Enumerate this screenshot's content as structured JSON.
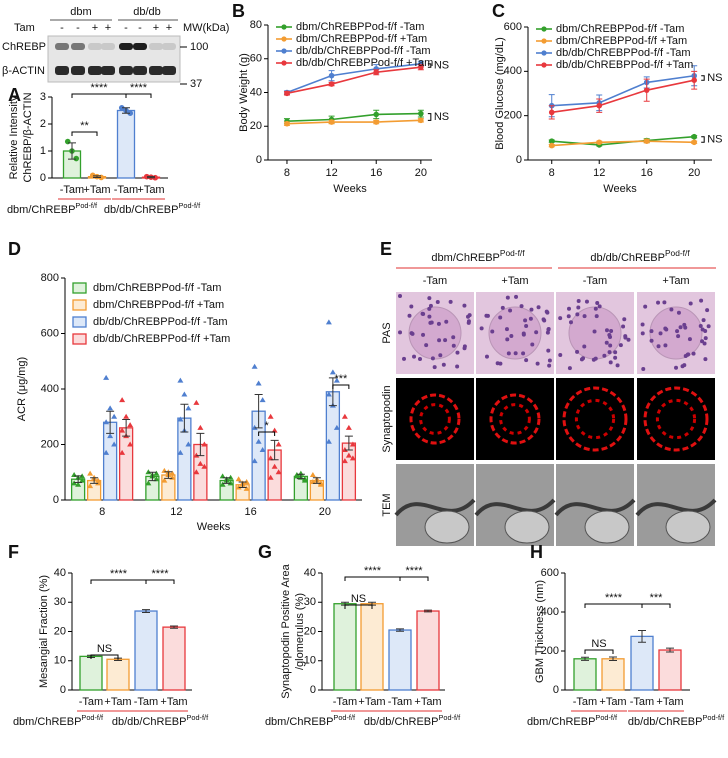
{
  "blot": {
    "groups": [
      "dbm",
      "db/db"
    ],
    "row_label": "Tam",
    "lanes": [
      "-",
      "-",
      "+",
      "+",
      "-",
      "-",
      "+",
      "+"
    ],
    "mw_label": "MW(kDa)",
    "bands": [
      "ChREBP",
      "β-ACTIN"
    ],
    "mw": [
      100,
      37
    ]
  },
  "micrographs": {
    "panel": "E",
    "groups": [
      {
        "text": "dbm/ChREBP",
        "sup": "Pod-f/f"
      },
      {
        "text": "db/db/ChREBP",
        "sup": "Pod-f/f"
      }
    ],
    "columns": [
      "-Tam",
      "+Tam",
      "-Tam",
      "+Tam"
    ],
    "rows": [
      "PAS",
      "Synaptopodin",
      "TEM"
    ]
  },
  "chart_data": [
    {
      "type": "bar",
      "panel": "A",
      "ylabel": [
        "Relative Intensity",
        "ChREBP/β-ACTIN"
      ],
      "categories": [
        "-Tam",
        "+Tam",
        "-Tam",
        "+Tam"
      ],
      "groups": [
        {
          "text": "dbm/ChREBP",
          "sup": "Pod-f/f"
        },
        {
          "text": "db/db/ChREBP",
          "sup": "Pod-f/f"
        }
      ],
      "values": [
        1.0,
        0.05,
        2.5,
        0.03
      ],
      "errors": [
        0.3,
        0.03,
        0.1,
        0.02
      ],
      "points": [
        [
          1.35,
          1.0,
          0.72
        ],
        [
          0.1,
          0.05,
          0.02
        ],
        [
          2.6,
          2.5,
          2.4
        ],
        [
          0.05,
          0.03,
          0.01
        ]
      ],
      "colors": [
        "#33a02c",
        "#f39c32",
        "#4f7fcf",
        "#e8383d"
      ],
      "fill_colors": [
        "#dff2dc",
        "#fdebd3",
        "#dde8f8",
        "#fbdcdc"
      ],
      "ylim": [
        0,
        3
      ],
      "yticks": [
        0,
        1,
        2,
        3
      ],
      "significance": [
        "**",
        "****",
        "****"
      ]
    },
    {
      "type": "line",
      "panel": "B",
      "ylabel": [
        "Body Weight (g)"
      ],
      "xlabel": "Weeks",
      "x": [
        8,
        12,
        16,
        20
      ],
      "xlim": [
        6.3,
        21
      ],
      "xticks": [
        8,
        12,
        16,
        20
      ],
      "ylim": [
        0,
        80
      ],
      "yticks": [
        0,
        20,
        40,
        60,
        80
      ],
      "legend": "upper left",
      "series": [
        {
          "name": "dbm/ChREBPPod-f/f -Tam",
          "color": "#33a02c",
          "values": [
            23,
            24,
            27,
            27.5
          ],
          "errors": [
            1.5,
            2,
            2.5,
            2
          ]
        },
        {
          "name": "dbm/ChREBPPod-f/f +Tam",
          "color": "#f39c32",
          "values": [
            21.5,
            22.5,
            22.5,
            23.5
          ],
          "errors": [
            1,
            1,
            1,
            1
          ]
        },
        {
          "name": "db/db/ChREBPPod-f/f -Tam",
          "color": "#4f7fcf",
          "values": [
            40,
            50,
            54,
            57
          ],
          "errors": [
            1,
            3,
            2.5,
            1.5
          ]
        },
        {
          "name": "db/db/ChREBPPod-f/f +Tam",
          "color": "#e8383d",
          "values": [
            39.5,
            45,
            52,
            55
          ],
          "errors": [
            1,
            1,
            1.5,
            1.5
          ]
        }
      ],
      "annotations": [
        "NS",
        "NS"
      ]
    },
    {
      "type": "line",
      "panel": "C",
      "ylabel": [
        "Blood Glucose (mg/dL)"
      ],
      "xlabel": "Weeks",
      "x": [
        8,
        12,
        16,
        20
      ],
      "xlim": [
        6,
        21.5
      ],
      "xticks": [
        8,
        12,
        16,
        20
      ],
      "ylim": [
        0,
        600
      ],
      "yticks": [
        0,
        200,
        400,
        600
      ],
      "legend": "upper left",
      "series": [
        {
          "name": "dbm/ChREBPPod-f/f -Tam",
          "color": "#33a02c",
          "values": [
            85,
            68,
            88,
            105
          ],
          "errors": [
            5,
            5,
            8,
            5
          ]
        },
        {
          "name": "dbm/ChREBPPod-f/f +Tam",
          "color": "#f39c32",
          "values": [
            65,
            80,
            85,
            80
          ],
          "errors": [
            5,
            5,
            8,
            5
          ]
        },
        {
          "name": "db/db/ChREBPPod-f/f -Tam",
          "color": "#4f7fcf",
          "values": [
            245,
            258,
            350,
            380
          ],
          "errors": [
            50,
            35,
            25,
            45
          ]
        },
        {
          "name": "db/db/ChREBPPod-f/f +Tam",
          "color": "#e8383d",
          "values": [
            215,
            245,
            315,
            360
          ],
          "errors": [
            30,
            30,
            50,
            40
          ]
        }
      ],
      "annotations": [
        "NS",
        "NS"
      ]
    },
    {
      "type": "bar",
      "panel": "D",
      "ylabel": [
        "ACR (μg/mg)"
      ],
      "xlabel": "Weeks",
      "categories": [
        "8",
        "12",
        "16",
        "20"
      ],
      "ylim": [
        0,
        800
      ],
      "yticks": [
        0,
        200,
        400,
        600,
        800
      ],
      "legend": "upper left",
      "series": [
        {
          "name": "dbm/ChREBPPod-f/f -Tam",
          "color": "#33a02c",
          "fill_color": "#dff2dc",
          "values": [
            75,
            85,
            70,
            85
          ],
          "errors": [
            12,
            15,
            10,
            8
          ],
          "points": [
            [
              90,
              80,
              70,
              60,
              55,
              85
            ],
            [
              100,
              85,
              75,
              60,
              90,
              95
            ],
            [
              85,
              75,
              60,
              55,
              70,
              80
            ],
            [
              90,
              80,
              75,
              85,
              95,
              70
            ]
          ]
        },
        {
          "name": "dbm/ChREBPPod-f/f +Tam",
          "color": "#f39c32",
          "fill_color": "#fdebd3",
          "values": [
            70,
            90,
            55,
            70
          ],
          "errors": [
            10,
            12,
            10,
            10
          ],
          "points": [
            [
              95,
              75,
              60,
              50,
              80,
              70
            ],
            [
              105,
              90,
              80,
              70,
              100,
              95
            ],
            [
              75,
              55,
              40,
              45,
              60,
              65
            ],
            [
              90,
              70,
              55,
              65,
              75,
              60
            ]
          ]
        },
        {
          "name": "db/db/ChREBPPod-f/f -Tam",
          "color": "#4f7fcf",
          "fill_color": "#dde8f8",
          "values": [
            280,
            295,
            320,
            390
          ],
          "errors": [
            40,
            50,
            60,
            50
          ],
          "points": [
            [
              440,
              330,
              300,
              280,
              230,
              200,
              170
            ],
            [
              430,
              380,
              330,
              290,
              250,
              200,
              170
            ],
            [
              480,
              420,
              360,
              260,
              210,
              180,
              140
            ],
            [
              640,
              460,
              430,
              380,
              340,
              260,
              210
            ]
          ]
        },
        {
          "name": "db/db/ChREBPPod-f/f +Tam",
          "color": "#e8383d",
          "fill_color": "#fbdcdc",
          "values": [
            260,
            200,
            180,
            205
          ],
          "errors": [
            30,
            40,
            35,
            25
          ],
          "points": [
            [
              360,
              300,
              270,
              250,
              230,
              200,
              170
            ],
            [
              350,
              260,
              200,
              160,
              130,
              120,
              100
            ],
            [
              300,
              250,
              200,
              150,
              120,
              100,
              80
            ],
            [
              300,
              260,
              200,
              180,
              160,
              150,
              140
            ]
          ]
        }
      ],
      "significance": [
        "*",
        "***"
      ]
    },
    {
      "type": "bar",
      "panel": "F",
      "ylabel": [
        "Mesangial Fraction (%)"
      ],
      "categories": [
        "-Tam",
        "+Tam",
        "-Tam",
        "+Tam"
      ],
      "groups": [
        {
          "text": "dbm/ChREBP",
          "sup": "Pod-f/f"
        },
        {
          "text": "db/db/ChREBP",
          "sup": "Pod-f/f"
        }
      ],
      "values": [
        11.5,
        10.5,
        27,
        21.5
      ],
      "errors": [
        0.4,
        0.4,
        0.5,
        0.4
      ],
      "colors": [
        "#33a02c",
        "#f39c32",
        "#4f7fcf",
        "#e8383d"
      ],
      "fill_colors": [
        "#dff2dc",
        "#fdebd3",
        "#dde8f8",
        "#fbdcdc"
      ],
      "ylim": [
        0,
        40
      ],
      "yticks": [
        0,
        10,
        20,
        30,
        40
      ],
      "significance": [
        "NS",
        "****",
        "****"
      ]
    },
    {
      "type": "bar",
      "panel": "G",
      "ylabel": [
        "Synaptopodin Positive Area",
        "/glomerulus (%)"
      ],
      "categories": [
        "-Tam",
        "+Tam",
        "-Tam",
        "+Tam"
      ],
      "groups": [
        {
          "text": "dbm/ChREBP",
          "sup": "Pod-f/f"
        },
        {
          "text": "db/db/ChREBP",
          "sup": "Pod-f/f"
        }
      ],
      "values": [
        29.5,
        29.5,
        20.5,
        27
      ],
      "errors": [
        0.5,
        0.5,
        0.4,
        0.3
      ],
      "colors": [
        "#33a02c",
        "#f39c32",
        "#4f7fcf",
        "#e8383d"
      ],
      "fill_colors": [
        "#dff2dc",
        "#fdebd3",
        "#dde8f8",
        "#fbdcdc"
      ],
      "ylim": [
        0,
        40
      ],
      "yticks": [
        0,
        10,
        20,
        30,
        40
      ],
      "significance": [
        "NS",
        "****",
        "****"
      ]
    },
    {
      "type": "bar",
      "panel": "H",
      "ylabel": [
        "GBM Thickness (nm)"
      ],
      "categories": [
        "-Tam",
        "+Tam",
        "-Tam",
        "+Tam"
      ],
      "groups": [
        {
          "text": "dbm/ChREBP",
          "sup": "Pod-f/f"
        },
        {
          "text": "db/db/ChREBP",
          "sup": "Pod-f/f"
        }
      ],
      "values": [
        160,
        160,
        275,
        205
      ],
      "errors": [
        8,
        9,
        30,
        10
      ],
      "colors": [
        "#33a02c",
        "#f39c32",
        "#4f7fcf",
        "#e8383d"
      ],
      "fill_colors": [
        "#dff2dc",
        "#fdebd3",
        "#dde8f8",
        "#fbdcdc"
      ],
      "ylim": [
        0,
        600
      ],
      "yticks": [
        0,
        200,
        400,
        600
      ],
      "significance": [
        "NS",
        "****",
        "***"
      ]
    }
  ]
}
